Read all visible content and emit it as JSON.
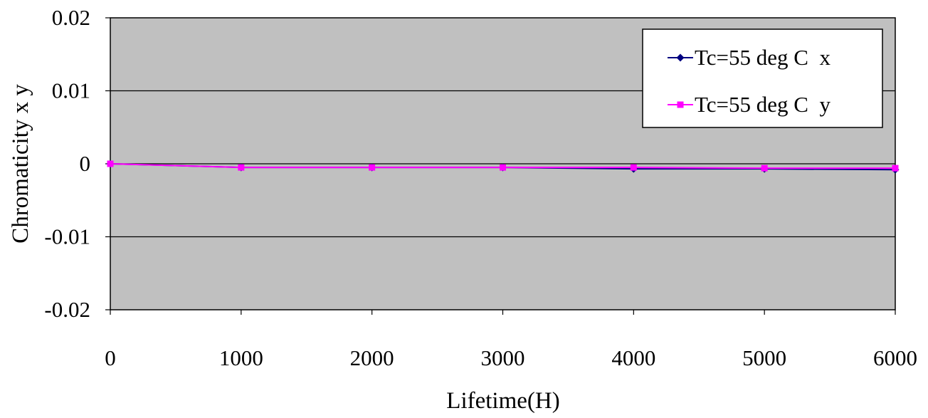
{
  "chart_data": {
    "type": "line",
    "title": "",
    "xlabel": "Lifetime(H)",
    "ylabel": "Chromaticity x y",
    "x": [
      0,
      1000,
      2000,
      3000,
      4000,
      5000,
      6000
    ],
    "x_tick_labels": [
      "0",
      "1000",
      "2000",
      "3000",
      "4000",
      "5000",
      "6000"
    ],
    "y_tick_labels": [
      "0.02",
      "0.01",
      "0",
      "-0.01",
      "-0.02"
    ],
    "y_ticks": [
      0.02,
      0.01,
      0,
      -0.01,
      -0.02
    ],
    "xlim": [
      0,
      6000
    ],
    "ylim": [
      -0.02,
      0.02
    ],
    "grid": "horizontal",
    "legend_position": "top-right",
    "plot_background": "#c0c0c0",
    "series": [
      {
        "name": "Tc=55 deg C  x",
        "color": "#000080",
        "marker": "diamond",
        "values": [
          0,
          -0.0005,
          -0.0005,
          -0.0005,
          -0.0007,
          -0.0007,
          -0.0008
        ]
      },
      {
        "name": "Tc=55 deg C  y",
        "color": "#ff00ff",
        "marker": "square",
        "values": [
          0,
          -0.0005,
          -0.0005,
          -0.0005,
          -0.0005,
          -0.0006,
          -0.0006
        ]
      }
    ]
  }
}
